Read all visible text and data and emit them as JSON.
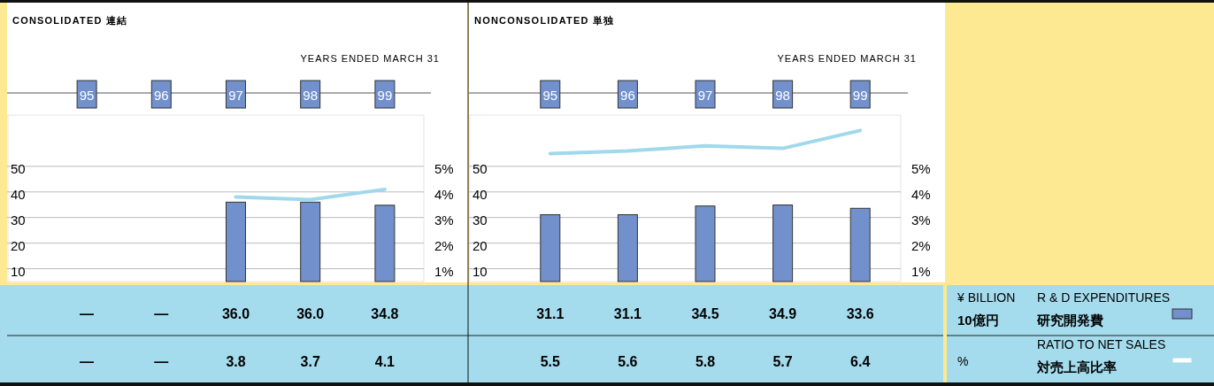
{
  "chart_data": [
    {
      "type": "bar",
      "title": "CONSOLIDATED 連結",
      "subtitle": "YEARS ENDED MARCH 31",
      "categories": [
        "95",
        "96",
        "97",
        "98",
        "99"
      ],
      "series": [
        {
          "color": "#7190cc",
          "values": [
            null,
            null,
            36.0,
            36.0,
            34.8
          ],
          "value_labels": [
            "—",
            "—",
            "36.0",
            "36.0",
            "34.8"
          ]
        },
        {
          "type": "line",
          "axis": "y2",
          "color": "#a0d8ec",
          "values": [
            null,
            null,
            3.8,
            3.7,
            4.1
          ],
          "value_labels": [
            "—",
            "—",
            "3.8",
            "3.7",
            "4.1"
          ]
        }
      ],
      "ylim": [
        5,
        70
      ],
      "yticks": [
        10,
        20,
        30,
        40,
        50
      ],
      "y2lim": [
        0.5,
        7
      ],
      "y2ticks": [
        {
          "value": 1,
          "label": "1%"
        },
        {
          "value": 2,
          "label": "2%"
        },
        {
          "value": 3,
          "label": "3%"
        },
        {
          "value": 4,
          "label": "4%"
        },
        {
          "value": 5,
          "label": "5%"
        }
      ],
      "grid": "y",
      "legend": false
    },
    {
      "type": "bar",
      "title": "NONCONSOLIDATED 単独",
      "subtitle": "YEARS ENDED MARCH 31",
      "categories": [
        "95",
        "96",
        "97",
        "98",
        "99"
      ],
      "annotations": [
        "¥ BILLION\n10億円",
        "%"
      ],
      "series": [
        {
          "name": "R & D EXPENDITURES\n研究開発費",
          "color": "#7190cc",
          "values": [
            31.1,
            31.1,
            34.5,
            34.9,
            33.6
          ],
          "value_labels": [
            "31.1",
            "31.1",
            "34.5",
            "34.9",
            "33.6"
          ]
        },
        {
          "type": "line",
          "axis": "y2",
          "name": "RATIO TO NET SALES\n対売上高比率",
          "color": "#a0d8ec",
          "values": [
            5.5,
            5.6,
            5.8,
            5.7,
            6.4
          ],
          "value_labels": [
            "5.5",
            "5.6",
            "5.8",
            "5.7",
            "6.4"
          ]
        }
      ],
      "ylim": [
        5,
        70
      ],
      "yticks": [
        10,
        20,
        30,
        40,
        50
      ],
      "y2lim": [
        0.5,
        7
      ],
      "y2ticks": [
        {
          "value": 1,
          "label": "1%"
        },
        {
          "value": 2,
          "label": "2%"
        },
        {
          "value": 3,
          "label": "3%"
        },
        {
          "value": 4,
          "label": "4%"
        },
        {
          "value": 5,
          "label": "5%"
        }
      ],
      "grid": "y",
      "legend": "right"
    }
  ]
}
